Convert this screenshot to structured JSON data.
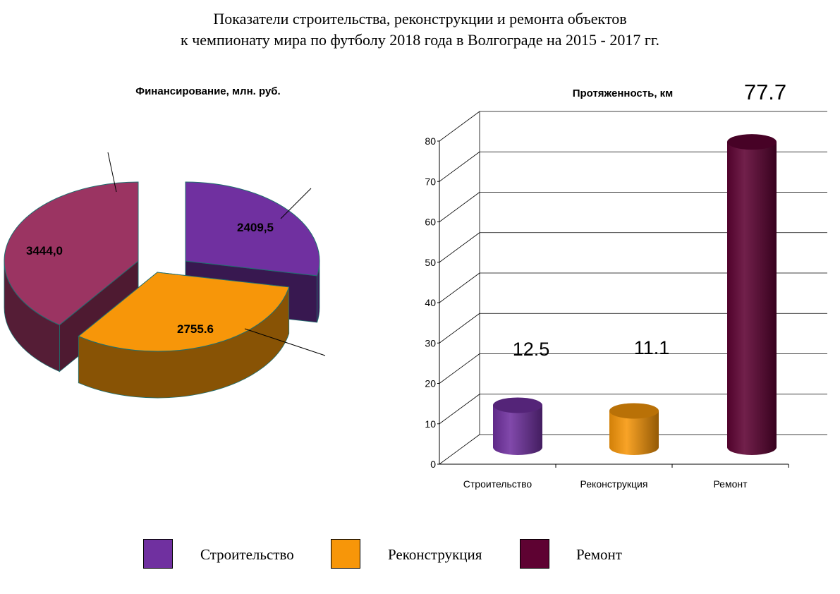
{
  "title": {
    "line1": "Показатели строительства, реконструкции и ремонта объектов",
    "line2": "к чемпионату мира по футболу 2018 года в Волгограде на 2015 - 2017 гг."
  },
  "colors": {
    "construction": "#7030a0",
    "reconstruction": "#f79609",
    "repair": "#5e0232",
    "pie_repair": "#9b3462"
  },
  "chart_data": [
    {
      "type": "pie",
      "title": "Финансирование, млн. руб.",
      "categories": [
        "Строительство",
        "Реконструкция",
        "Ремонт"
      ],
      "values": [
        2409.5,
        2755.6,
        3444.0
      ],
      "data_labels": [
        "2409,5",
        "2755.6",
        "3444,0"
      ]
    },
    {
      "type": "bar",
      "title": "Протяженность, км",
      "categories": [
        "Строительство",
        "Реконструкция",
        "Ремонт"
      ],
      "values": [
        12.5,
        11.1,
        77.7
      ],
      "data_labels": [
        "12.5",
        "11.1",
        "77.7"
      ],
      "y_ticks": [
        "0",
        "10",
        "20",
        "30",
        "40",
        "50",
        "60",
        "70",
        "80"
      ],
      "ylim": [
        0,
        80
      ],
      "grid": true
    }
  ],
  "legend": [
    {
      "label": "Строительство"
    },
    {
      "label": "Реконструкция"
    },
    {
      "label": "Ремонт"
    }
  ]
}
